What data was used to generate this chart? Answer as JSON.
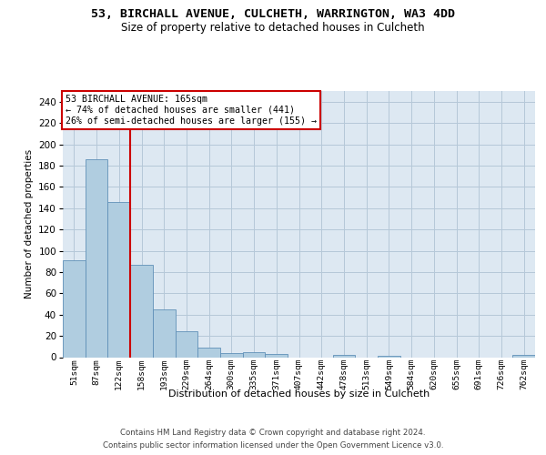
{
  "title": "53, BIRCHALL AVENUE, CULCHETH, WARRINGTON, WA3 4DD",
  "subtitle": "Size of property relative to detached houses in Culcheth",
  "xlabel": "Distribution of detached houses by size in Culcheth",
  "ylabel": "Number of detached properties",
  "categories": [
    "51sqm",
    "87sqm",
    "122sqm",
    "158sqm",
    "193sqm",
    "229sqm",
    "264sqm",
    "300sqm",
    "335sqm",
    "371sqm",
    "407sqm",
    "442sqm",
    "478sqm",
    "513sqm",
    "549sqm",
    "584sqm",
    "620sqm",
    "655sqm",
    "691sqm",
    "726sqm",
    "762sqm"
  ],
  "values": [
    91,
    186,
    146,
    87,
    45,
    24,
    9,
    4,
    5,
    3,
    0,
    0,
    2,
    0,
    1,
    0,
    0,
    0,
    0,
    0,
    2
  ],
  "bar_color": "#b0cde0",
  "bar_edge_color": "#6090b8",
  "vline_color": "#cc0000",
  "vline_pos": 2.5,
  "annotation_text": "53 BIRCHALL AVENUE: 165sqm\n← 74% of detached houses are smaller (441)\n26% of semi-detached houses are larger (155) →",
  "annotation_box_facecolor": "#ffffff",
  "annotation_box_edgecolor": "#cc0000",
  "ylim": [
    0,
    250
  ],
  "yticks": [
    0,
    20,
    40,
    60,
    80,
    100,
    120,
    140,
    160,
    180,
    200,
    220,
    240
  ],
  "background_color": "#ffffff",
  "plot_bg_color": "#dde8f2",
  "grid_color": "#b5c8d8",
  "title_fontsize": 9.5,
  "subtitle_fontsize": 8.5,
  "footer_line1": "Contains HM Land Registry data © Crown copyright and database right 2024.",
  "footer_line2": "Contains public sector information licensed under the Open Government Licence v3.0."
}
